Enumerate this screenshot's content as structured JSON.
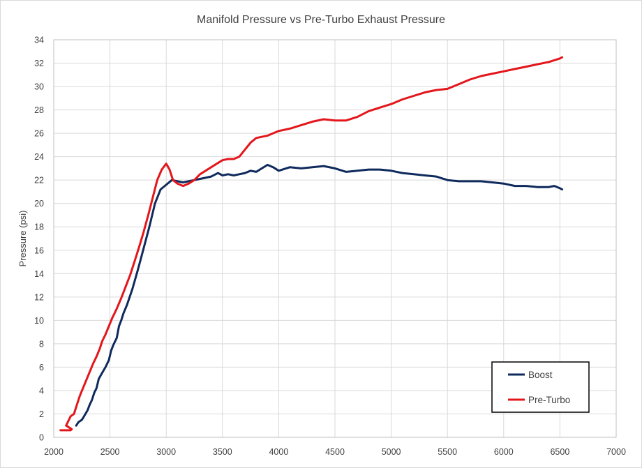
{
  "chart_data": {
    "type": "line",
    "title": "Manifold Pressure vs Pre-Turbo Exhaust Pressure",
    "xlabel": "",
    "ylabel": "Pressure (psi)",
    "xlim": [
      2000,
      7000
    ],
    "ylim": [
      0,
      34
    ],
    "x_ticks": [
      2000,
      2500,
      3000,
      3500,
      4000,
      4500,
      5000,
      5500,
      6000,
      6500,
      7000
    ],
    "y_ticks": [
      0,
      2,
      4,
      6,
      8,
      10,
      12,
      14,
      16,
      18,
      20,
      22,
      24,
      26,
      28,
      30,
      32,
      34
    ],
    "grid": true,
    "legend_position": "bottom-right",
    "series": [
      {
        "name": "Boost",
        "color": "#0f2a5c",
        "x": [
          2200,
          2220,
          2250,
          2270,
          2300,
          2320,
          2340,
          2360,
          2380,
          2400,
          2430,
          2460,
          2490,
          2510,
          2530,
          2560,
          2580,
          2600,
          2620,
          2650,
          2700,
          2750,
          2800,
          2850,
          2900,
          2950,
          3000,
          3050,
          3100,
          3150,
          3200,
          3300,
          3400,
          3460,
          3500,
          3550,
          3600,
          3650,
          3700,
          3750,
          3800,
          3850,
          3900,
          3950,
          4000,
          4100,
          4200,
          4300,
          4400,
          4500,
          4600,
          4700,
          4800,
          4900,
          5000,
          5100,
          5200,
          5300,
          5400,
          5500,
          5600,
          5700,
          5800,
          5900,
          6000,
          6100,
          6200,
          6300,
          6400,
          6450,
          6500,
          6520
        ],
        "values": [
          1.0,
          1.3,
          1.5,
          1.8,
          2.3,
          2.8,
          3.2,
          3.8,
          4.2,
          5.0,
          5.5,
          6.0,
          6.6,
          7.4,
          7.9,
          8.5,
          9.5,
          10.0,
          10.6,
          11.3,
          12.7,
          14.4,
          16.2,
          18.0,
          20.0,
          21.2,
          21.6,
          22.0,
          21.9,
          21.8,
          21.9,
          22.1,
          22.3,
          22.6,
          22.4,
          22.5,
          22.4,
          22.5,
          22.6,
          22.8,
          22.7,
          23.0,
          23.3,
          23.1,
          22.8,
          23.1,
          23.0,
          23.1,
          23.2,
          23.0,
          22.7,
          22.8,
          22.9,
          22.9,
          22.8,
          22.6,
          22.5,
          22.4,
          22.3,
          22.0,
          21.9,
          21.9,
          21.9,
          21.8,
          21.7,
          21.5,
          21.5,
          21.4,
          21.4,
          21.5,
          21.3,
          21.2
        ]
      },
      {
        "name": "Pre-Turbo",
        "color": "#e3161b",
        "x": [
          2060,
          2080,
          2100,
          2120,
          2140,
          2150,
          2160,
          2110,
          2130,
          2150,
          2180,
          2200,
          2230,
          2260,
          2290,
          2320,
          2350,
          2380,
          2410,
          2430,
          2460,
          2490,
          2520,
          2560,
          2600,
          2640,
          2680,
          2720,
          2760,
          2800,
          2840,
          2880,
          2920,
          2960,
          3000,
          3030,
          3060,
          3100,
          3150,
          3200,
          3250,
          3300,
          3350,
          3400,
          3450,
          3500,
          3550,
          3600,
          3650,
          3700,
          3750,
          3800,
          3900,
          4000,
          4100,
          4200,
          4300,
          4400,
          4500,
          4600,
          4700,
          4800,
          4900,
          5000,
          5100,
          5200,
          5300,
          5400,
          5500,
          5600,
          5700,
          5800,
          5900,
          6000,
          6100,
          6200,
          6300,
          6400,
          6500,
          6520
        ],
        "values": [
          0.6,
          0.6,
          0.6,
          0.6,
          0.6,
          0.6,
          0.7,
          1.0,
          1.4,
          1.8,
          2.0,
          2.6,
          3.5,
          4.2,
          4.9,
          5.6,
          6.3,
          6.9,
          7.6,
          8.2,
          8.8,
          9.5,
          10.2,
          11.0,
          11.9,
          12.9,
          13.9,
          15.1,
          16.3,
          17.6,
          19.0,
          20.5,
          22.0,
          22.9,
          23.4,
          22.9,
          22.0,
          21.7,
          21.5,
          21.7,
          22.0,
          22.5,
          22.8,
          23.1,
          23.4,
          23.7,
          23.8,
          23.8,
          24.0,
          24.6,
          25.2,
          25.6,
          25.8,
          26.2,
          26.4,
          26.7,
          27.0,
          27.2,
          27.1,
          27.1,
          27.4,
          27.9,
          28.2,
          28.5,
          28.9,
          29.2,
          29.5,
          29.7,
          29.8,
          30.2,
          30.6,
          30.9,
          31.1,
          31.3,
          31.5,
          31.7,
          31.9,
          32.1,
          32.4,
          32.5
        ]
      }
    ]
  }
}
